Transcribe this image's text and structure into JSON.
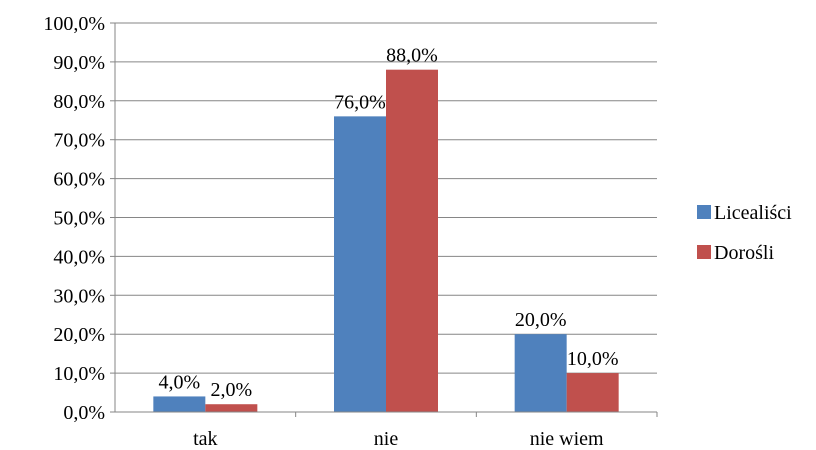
{
  "chart_data": {
    "type": "bar",
    "categories": [
      "tak",
      "nie",
      "nie wiem"
    ],
    "series": [
      {
        "name": "Licealiści",
        "values": [
          4.0,
          76.0,
          20.0
        ],
        "labels": [
          "4,0%",
          "76,0%",
          "20,0%"
        ],
        "color": "#4F81BD"
      },
      {
        "name": "Dorośli",
        "values": [
          2.0,
          88.0,
          10.0
        ],
        "labels": [
          "2,0%",
          "88,0%",
          "10,0%"
        ],
        "color": "#C0504D"
      }
    ],
    "yticks": [
      "0,0%",
      "10,0%",
      "20,0%",
      "30,0%",
      "40,0%",
      "50,0%",
      "60,0%",
      "70,0%",
      "80,0%",
      "90,0%",
      "100,0%"
    ],
    "ylim": [
      0,
      100
    ],
    "grid": true,
    "legend": "right",
    "title": "",
    "xlabel": "",
    "ylabel": ""
  }
}
